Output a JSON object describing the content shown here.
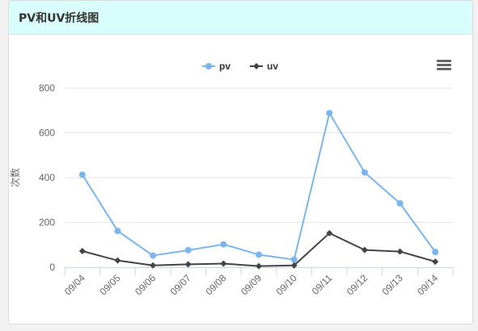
{
  "panel": {
    "title": "PV和UV折线图"
  },
  "chart_data": {
    "type": "line",
    "title": "",
    "xlabel": "",
    "ylabel": "次数",
    "ylim": [
      0,
      800
    ],
    "yticks": [
      0,
      200,
      400,
      600,
      800
    ],
    "categories": [
      "09/04",
      "09/05",
      "09/06",
      "09/07",
      "09/08",
      "09/09",
      "09/10",
      "09/11",
      "09/12",
      "09/13",
      "09/14"
    ],
    "series": [
      {
        "name": "pv",
        "color": "#7cb5ec",
        "marker": "circle",
        "values": [
          413,
          162,
          52,
          76,
          102,
          56,
          34,
          688,
          423,
          285,
          68
        ]
      },
      {
        "name": "uv",
        "color": "#434348",
        "marker": "diamond",
        "values": [
          72,
          30,
          8,
          13,
          16,
          5,
          8,
          152,
          77,
          70,
          25
        ]
      }
    ],
    "legend_position": "top-center",
    "grid": true,
    "menu_icon": "hamburger-menu-icon"
  }
}
